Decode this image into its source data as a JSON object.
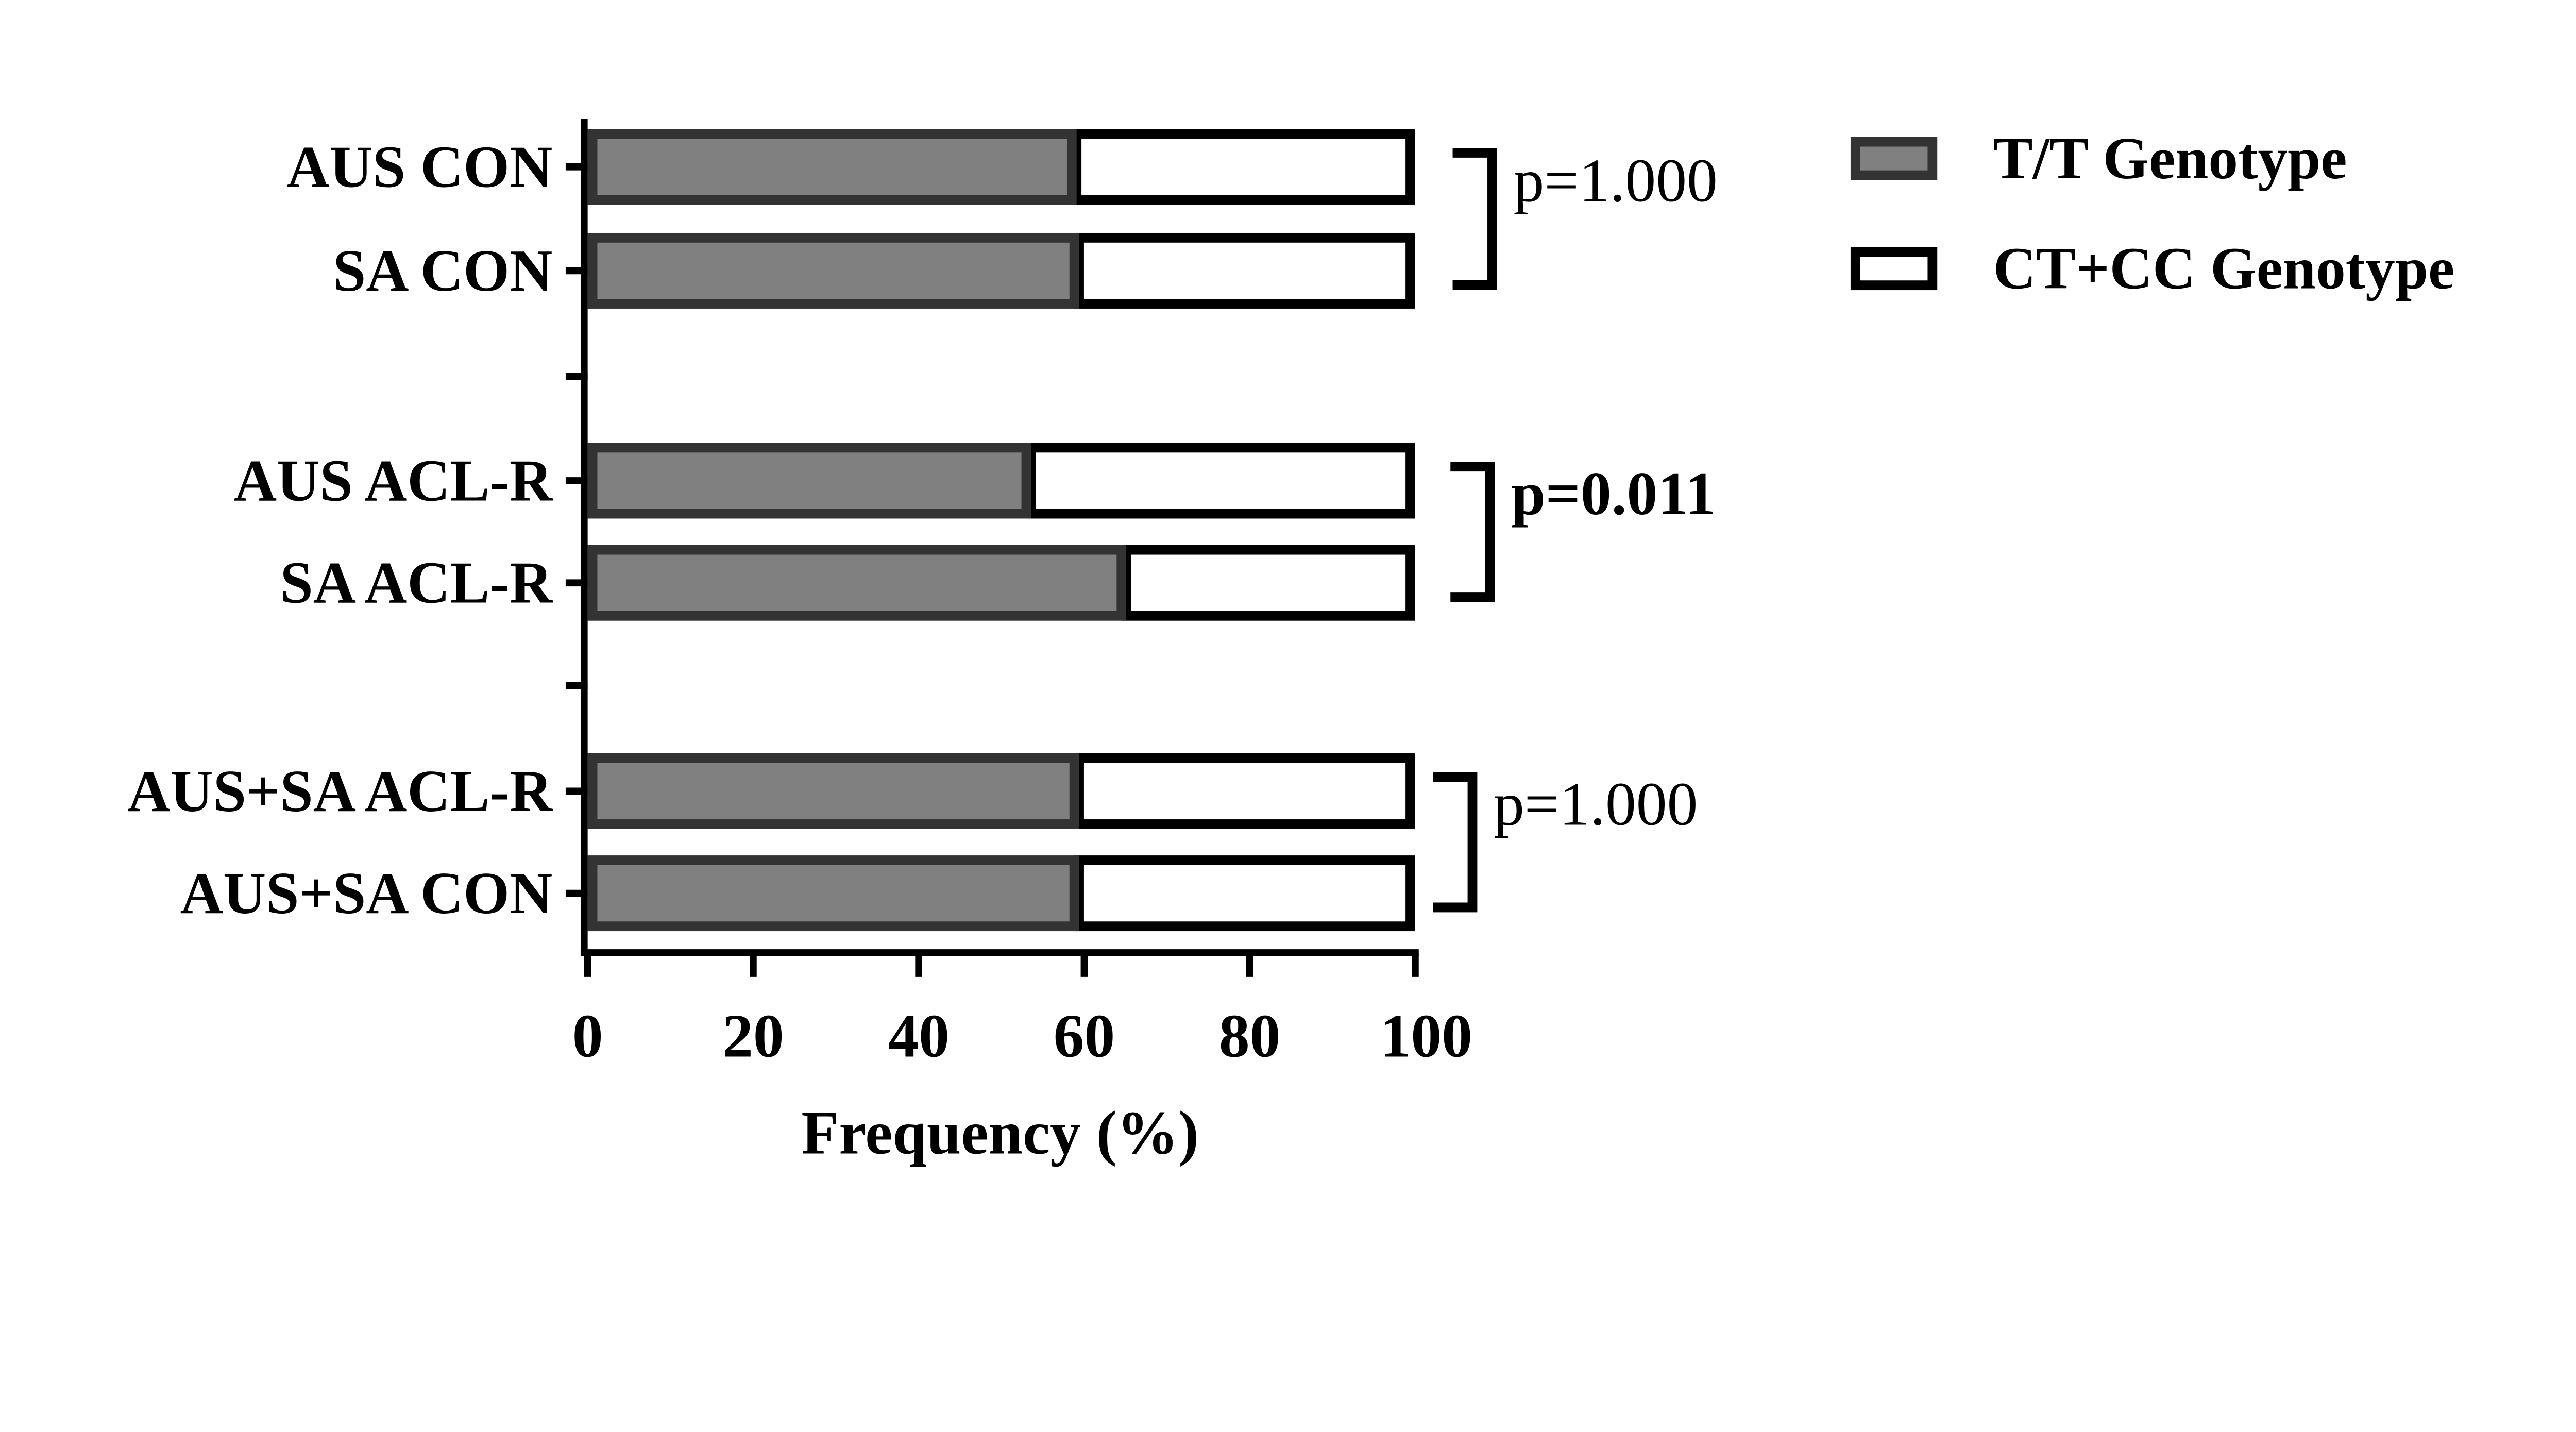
{
  "chart_data": {
    "type": "bar",
    "orientation": "horizontal",
    "stacked": true,
    "categories": [
      "AUS CON",
      "SA CON",
      "AUS ACL-R",
      "SA ACL-R",
      "AUS+SA ACL-R",
      "AUS+SA CON"
    ],
    "groups": [
      [
        0,
        1
      ],
      [
        2,
        3
      ],
      [
        4,
        5
      ]
    ],
    "series": [
      {
        "name": "T/T Genotype",
        "color": "#808080",
        "border": "#333333",
        "values": [
          58.5,
          58.8,
          53.0,
          64.5,
          58.8,
          58.8
        ]
      },
      {
        "name": "CT+CC Genotype",
        "color": "#ffffff",
        "border": "#000000",
        "values": [
          41.5,
          41.2,
          47.0,
          35.5,
          41.2,
          41.2
        ]
      }
    ],
    "xlabel": "Frequency (%)",
    "xlim": [
      0,
      100
    ],
    "xticks": [
      "0",
      "20",
      "40",
      "60",
      "80",
      "100"
    ],
    "annotations": [
      {
        "text": "p=1.000",
        "bold": false,
        "group": 0
      },
      {
        "text": "p=0.011",
        "bold": true,
        "group": 1
      },
      {
        "text": "p=1.000",
        "bold": false,
        "group": 2
      }
    ],
    "legend": "top-right",
    "grid": false
  }
}
